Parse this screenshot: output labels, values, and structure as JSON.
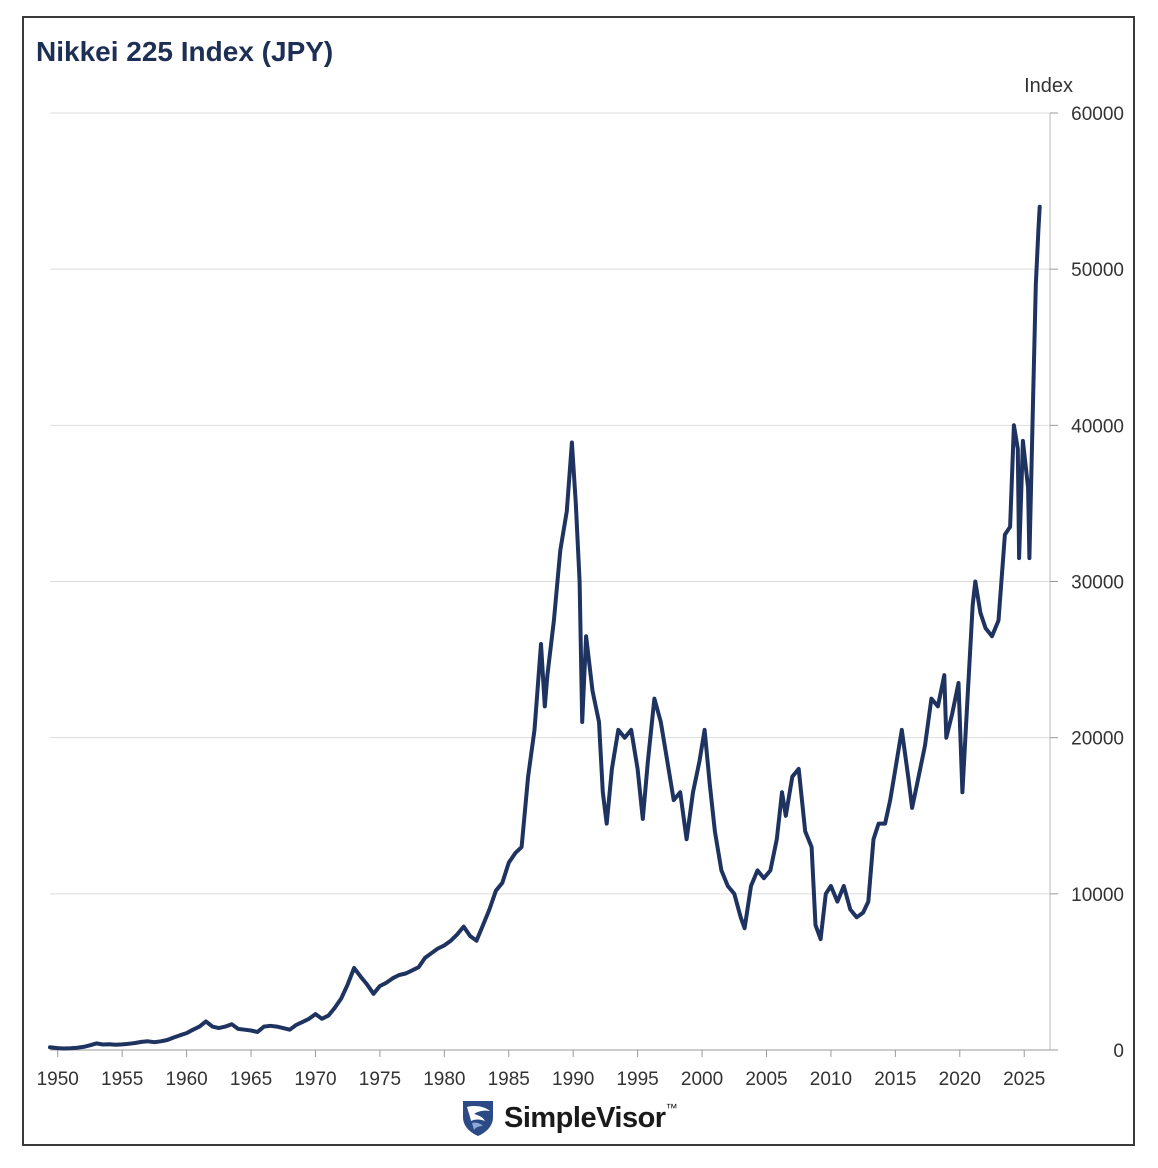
{
  "chart_data": {
    "type": "line",
    "title": "Nikkei 225 Index (JPY)",
    "ylabel": "Index",
    "xlabel": "",
    "xlim": [
      1949.4,
      2027
    ],
    "ylim": [
      0,
      60000
    ],
    "x_ticks": [
      1950,
      1955,
      1960,
      1965,
      1970,
      1975,
      1980,
      1985,
      1990,
      1995,
      2000,
      2005,
      2010,
      2015,
      2020,
      2025
    ],
    "y_ticks": [
      0,
      10000,
      20000,
      30000,
      40000,
      50000,
      60000
    ],
    "y_tick_labels": [
      "0",
      "10000",
      "20000",
      "30000",
      "40000",
      "50000",
      "60000"
    ],
    "grid": "horizontal",
    "colors": {
      "line": "#1e3360",
      "grid": "#dddddd",
      "title": "#1e2f55"
    },
    "series": [
      {
        "points": [
          [
            1949.4,
            176
          ],
          [
            1950.0,
            120
          ],
          [
            1950.5,
            95
          ],
          [
            1951.0,
            110
          ],
          [
            1951.5,
            150
          ],
          [
            1952.0,
            200
          ],
          [
            1952.5,
            300
          ],
          [
            1953.0,
            420
          ],
          [
            1953.5,
            350
          ],
          [
            1954.0,
            370
          ],
          [
            1954.5,
            330
          ],
          [
            1955.0,
            360
          ],
          [
            1955.5,
            400
          ],
          [
            1956.0,
            450
          ],
          [
            1956.5,
            520
          ],
          [
            1957.0,
            560
          ],
          [
            1957.5,
            500
          ],
          [
            1958.0,
            560
          ],
          [
            1958.5,
            640
          ],
          [
            1959.0,
            800
          ],
          [
            1959.5,
            950
          ],
          [
            1960.0,
            1080
          ],
          [
            1960.5,
            1300
          ],
          [
            1961.0,
            1500
          ],
          [
            1961.5,
            1830
          ],
          [
            1962.0,
            1500
          ],
          [
            1962.5,
            1400
          ],
          [
            1963.0,
            1500
          ],
          [
            1963.5,
            1650
          ],
          [
            1964.0,
            1350
          ],
          [
            1964.5,
            1300
          ],
          [
            1965.0,
            1250
          ],
          [
            1965.5,
            1150
          ],
          [
            1966.0,
            1500
          ],
          [
            1966.5,
            1550
          ],
          [
            1967.0,
            1500
          ],
          [
            1967.5,
            1400
          ],
          [
            1968.0,
            1300
          ],
          [
            1968.5,
            1600
          ],
          [
            1969.0,
            1800
          ],
          [
            1969.5,
            2000
          ],
          [
            1970.0,
            2300
          ],
          [
            1970.5,
            2000
          ],
          [
            1971.0,
            2200
          ],
          [
            1971.5,
            2700
          ],
          [
            1972.0,
            3300
          ],
          [
            1972.5,
            4200
          ],
          [
            1973.0,
            5250
          ],
          [
            1973.5,
            4700
          ],
          [
            1974.0,
            4200
          ],
          [
            1974.5,
            3600
          ],
          [
            1975.0,
            4100
          ],
          [
            1975.5,
            4300
          ],
          [
            1976.0,
            4600
          ],
          [
            1976.5,
            4800
          ],
          [
            1977.0,
            4900
          ],
          [
            1977.5,
            5100
          ],
          [
            1978.0,
            5300
          ],
          [
            1978.5,
            5900
          ],
          [
            1979.0,
            6200
          ],
          [
            1979.5,
            6500
          ],
          [
            1980.0,
            6700
          ],
          [
            1980.5,
            7000
          ],
          [
            1981.0,
            7400
          ],
          [
            1981.5,
            7900
          ],
          [
            1982.0,
            7300
          ],
          [
            1982.5,
            7000
          ],
          [
            1983.0,
            8000
          ],
          [
            1983.5,
            9000
          ],
          [
            1984.0,
            10200
          ],
          [
            1984.5,
            10700
          ],
          [
            1985.0,
            12000
          ],
          [
            1985.5,
            12600
          ],
          [
            1986.0,
            13000
          ],
          [
            1986.5,
            17500
          ],
          [
            1987.0,
            20500
          ],
          [
            1987.5,
            26000
          ],
          [
            1987.8,
            22000
          ],
          [
            1988.0,
            24000
          ],
          [
            1988.5,
            27500
          ],
          [
            1989.0,
            32000
          ],
          [
            1989.5,
            34500
          ],
          [
            1989.9,
            38900
          ],
          [
            1990.2,
            35000
          ],
          [
            1990.5,
            30000
          ],
          [
            1990.7,
            21000
          ],
          [
            1991.0,
            26500
          ],
          [
            1991.5,
            23000
          ],
          [
            1992.0,
            21000
          ],
          [
            1992.3,
            16500
          ],
          [
            1992.6,
            14500
          ],
          [
            1993.0,
            18000
          ],
          [
            1993.5,
            20500
          ],
          [
            1994.0,
            20000
          ],
          [
            1994.5,
            20500
          ],
          [
            1995.0,
            18000
          ],
          [
            1995.4,
            14800
          ],
          [
            1995.8,
            18500
          ],
          [
            1996.3,
            22500
          ],
          [
            1996.8,
            21000
          ],
          [
            1997.2,
            19000
          ],
          [
            1997.8,
            16000
          ],
          [
            1998.3,
            16500
          ],
          [
            1998.8,
            13500
          ],
          [
            1999.3,
            16500
          ],
          [
            1999.8,
            18500
          ],
          [
            2000.2,
            20500
          ],
          [
            2000.6,
            17000
          ],
          [
            2001.0,
            14000
          ],
          [
            2001.5,
            11500
          ],
          [
            2002.0,
            10500
          ],
          [
            2002.5,
            10000
          ],
          [
            2003.0,
            8500
          ],
          [
            2003.3,
            7800
          ],
          [
            2003.8,
            10500
          ],
          [
            2004.3,
            11500
          ],
          [
            2004.8,
            11000
          ],
          [
            2005.3,
            11500
          ],
          [
            2005.8,
            13500
          ],
          [
            2006.2,
            16500
          ],
          [
            2006.5,
            15000
          ],
          [
            2007.0,
            17500
          ],
          [
            2007.5,
            18000
          ],
          [
            2008.0,
            14000
          ],
          [
            2008.5,
            13000
          ],
          [
            2008.8,
            8000
          ],
          [
            2009.2,
            7100
          ],
          [
            2009.6,
            10000
          ],
          [
            2010.0,
            10500
          ],
          [
            2010.5,
            9500
          ],
          [
            2011.0,
            10500
          ],
          [
            2011.5,
            9000
          ],
          [
            2012.0,
            8500
          ],
          [
            2012.5,
            8800
          ],
          [
            2012.9,
            9500
          ],
          [
            2013.3,
            13500
          ],
          [
            2013.7,
            14500
          ],
          [
            2014.2,
            14500
          ],
          [
            2014.6,
            16000
          ],
          [
            2015.0,
            18000
          ],
          [
            2015.5,
            20500
          ],
          [
            2016.0,
            17500
          ],
          [
            2016.3,
            15500
          ],
          [
            2016.8,
            17500
          ],
          [
            2017.3,
            19500
          ],
          [
            2017.8,
            22500
          ],
          [
            2018.3,
            22000
          ],
          [
            2018.8,
            24000
          ],
          [
            2018.95,
            20000
          ],
          [
            2019.4,
            21500
          ],
          [
            2019.9,
            23500
          ],
          [
            2020.2,
            16500
          ],
          [
            2020.6,
            22500
          ],
          [
            2021.0,
            28500
          ],
          [
            2021.2,
            30000
          ],
          [
            2021.6,
            28000
          ],
          [
            2022.0,
            27000
          ],
          [
            2022.5,
            26500
          ],
          [
            2023.0,
            27500
          ],
          [
            2023.5,
            33000
          ],
          [
            2023.9,
            33500
          ],
          [
            2024.2,
            40000
          ],
          [
            2024.5,
            38500
          ],
          [
            2024.6,
            31500
          ],
          [
            2024.9,
            39000
          ],
          [
            2025.3,
            36000
          ],
          [
            2025.4,
            31500
          ],
          [
            2025.7,
            42000
          ],
          [
            2025.9,
            49000
          ],
          [
            2026.1,
            52500
          ],
          [
            2026.2,
            54000
          ]
        ]
      }
    ]
  },
  "brand": {
    "name": "SimpleVisor",
    "mark": "™"
  }
}
